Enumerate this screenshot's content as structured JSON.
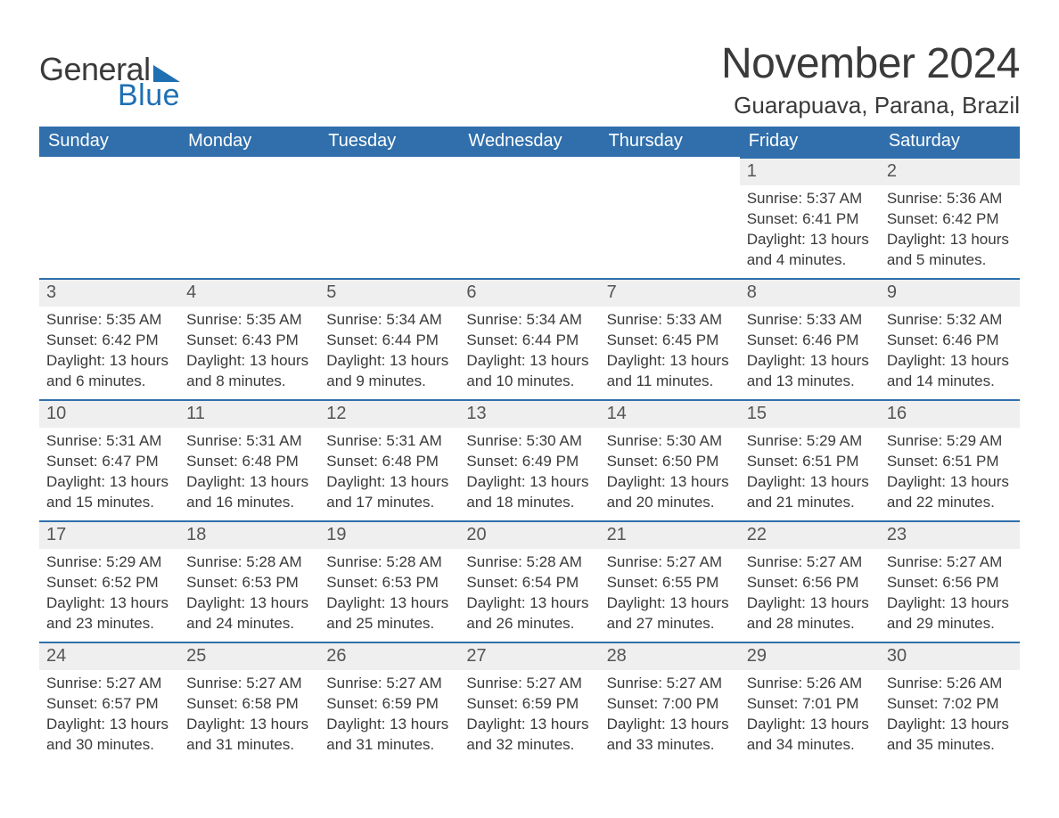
{
  "logo": {
    "word1": "General",
    "word2": "Blue"
  },
  "title": {
    "month": "November 2024",
    "location": "Guarapuava, Parana, Brazil"
  },
  "style": {
    "brand_color": "#306fac",
    "logo_accent": "#1f6fb3",
    "daynum_bg": "#efefef",
    "text_color": "#3a3a3a",
    "page_bg": "#ffffff",
    "dow_fontsize": 20,
    "daynum_fontsize": 20,
    "body_fontsize": 17,
    "month_fontsize": 48,
    "location_fontsize": 26
  },
  "calendar": {
    "days_of_week": [
      "Sunday",
      "Monday",
      "Tuesday",
      "Wednesday",
      "Thursday",
      "Friday",
      "Saturday"
    ],
    "first_weekday_index": 5,
    "num_days": 30,
    "labels": {
      "sunrise": "Sunrise",
      "sunset": "Sunset",
      "daylight": "Daylight"
    },
    "days": {
      "1": {
        "sunrise": "5:37 AM",
        "sunset": "6:41 PM",
        "daylight": "13 hours and 4 minutes."
      },
      "2": {
        "sunrise": "5:36 AM",
        "sunset": "6:42 PM",
        "daylight": "13 hours and 5 minutes."
      },
      "3": {
        "sunrise": "5:35 AM",
        "sunset": "6:42 PM",
        "daylight": "13 hours and 6 minutes."
      },
      "4": {
        "sunrise": "5:35 AM",
        "sunset": "6:43 PM",
        "daylight": "13 hours and 8 minutes."
      },
      "5": {
        "sunrise": "5:34 AM",
        "sunset": "6:44 PM",
        "daylight": "13 hours and 9 minutes."
      },
      "6": {
        "sunrise": "5:34 AM",
        "sunset": "6:44 PM",
        "daylight": "13 hours and 10 minutes."
      },
      "7": {
        "sunrise": "5:33 AM",
        "sunset": "6:45 PM",
        "daylight": "13 hours and 11 minutes."
      },
      "8": {
        "sunrise": "5:33 AM",
        "sunset": "6:46 PM",
        "daylight": "13 hours and 13 minutes."
      },
      "9": {
        "sunrise": "5:32 AM",
        "sunset": "6:46 PM",
        "daylight": "13 hours and 14 minutes."
      },
      "10": {
        "sunrise": "5:31 AM",
        "sunset": "6:47 PM",
        "daylight": "13 hours and 15 minutes."
      },
      "11": {
        "sunrise": "5:31 AM",
        "sunset": "6:48 PM",
        "daylight": "13 hours and 16 minutes."
      },
      "12": {
        "sunrise": "5:31 AM",
        "sunset": "6:48 PM",
        "daylight": "13 hours and 17 minutes."
      },
      "13": {
        "sunrise": "5:30 AM",
        "sunset": "6:49 PM",
        "daylight": "13 hours and 18 minutes."
      },
      "14": {
        "sunrise": "5:30 AM",
        "sunset": "6:50 PM",
        "daylight": "13 hours and 20 minutes."
      },
      "15": {
        "sunrise": "5:29 AM",
        "sunset": "6:51 PM",
        "daylight": "13 hours and 21 minutes."
      },
      "16": {
        "sunrise": "5:29 AM",
        "sunset": "6:51 PM",
        "daylight": "13 hours and 22 minutes."
      },
      "17": {
        "sunrise": "5:29 AM",
        "sunset": "6:52 PM",
        "daylight": "13 hours and 23 minutes."
      },
      "18": {
        "sunrise": "5:28 AM",
        "sunset": "6:53 PM",
        "daylight": "13 hours and 24 minutes."
      },
      "19": {
        "sunrise": "5:28 AM",
        "sunset": "6:53 PM",
        "daylight": "13 hours and 25 minutes."
      },
      "20": {
        "sunrise": "5:28 AM",
        "sunset": "6:54 PM",
        "daylight": "13 hours and 26 minutes."
      },
      "21": {
        "sunrise": "5:27 AM",
        "sunset": "6:55 PM",
        "daylight": "13 hours and 27 minutes."
      },
      "22": {
        "sunrise": "5:27 AM",
        "sunset": "6:56 PM",
        "daylight": "13 hours and 28 minutes."
      },
      "23": {
        "sunrise": "5:27 AM",
        "sunset": "6:56 PM",
        "daylight": "13 hours and 29 minutes."
      },
      "24": {
        "sunrise": "5:27 AM",
        "sunset": "6:57 PM",
        "daylight": "13 hours and 30 minutes."
      },
      "25": {
        "sunrise": "5:27 AM",
        "sunset": "6:58 PM",
        "daylight": "13 hours and 31 minutes."
      },
      "26": {
        "sunrise": "5:27 AM",
        "sunset": "6:59 PM",
        "daylight": "13 hours and 31 minutes."
      },
      "27": {
        "sunrise": "5:27 AM",
        "sunset": "6:59 PM",
        "daylight": "13 hours and 32 minutes."
      },
      "28": {
        "sunrise": "5:27 AM",
        "sunset": "7:00 PM",
        "daylight": "13 hours and 33 minutes."
      },
      "29": {
        "sunrise": "5:26 AM",
        "sunset": "7:01 PM",
        "daylight": "13 hours and 34 minutes."
      },
      "30": {
        "sunrise": "5:26 AM",
        "sunset": "7:02 PM",
        "daylight": "13 hours and 35 minutes."
      }
    }
  }
}
